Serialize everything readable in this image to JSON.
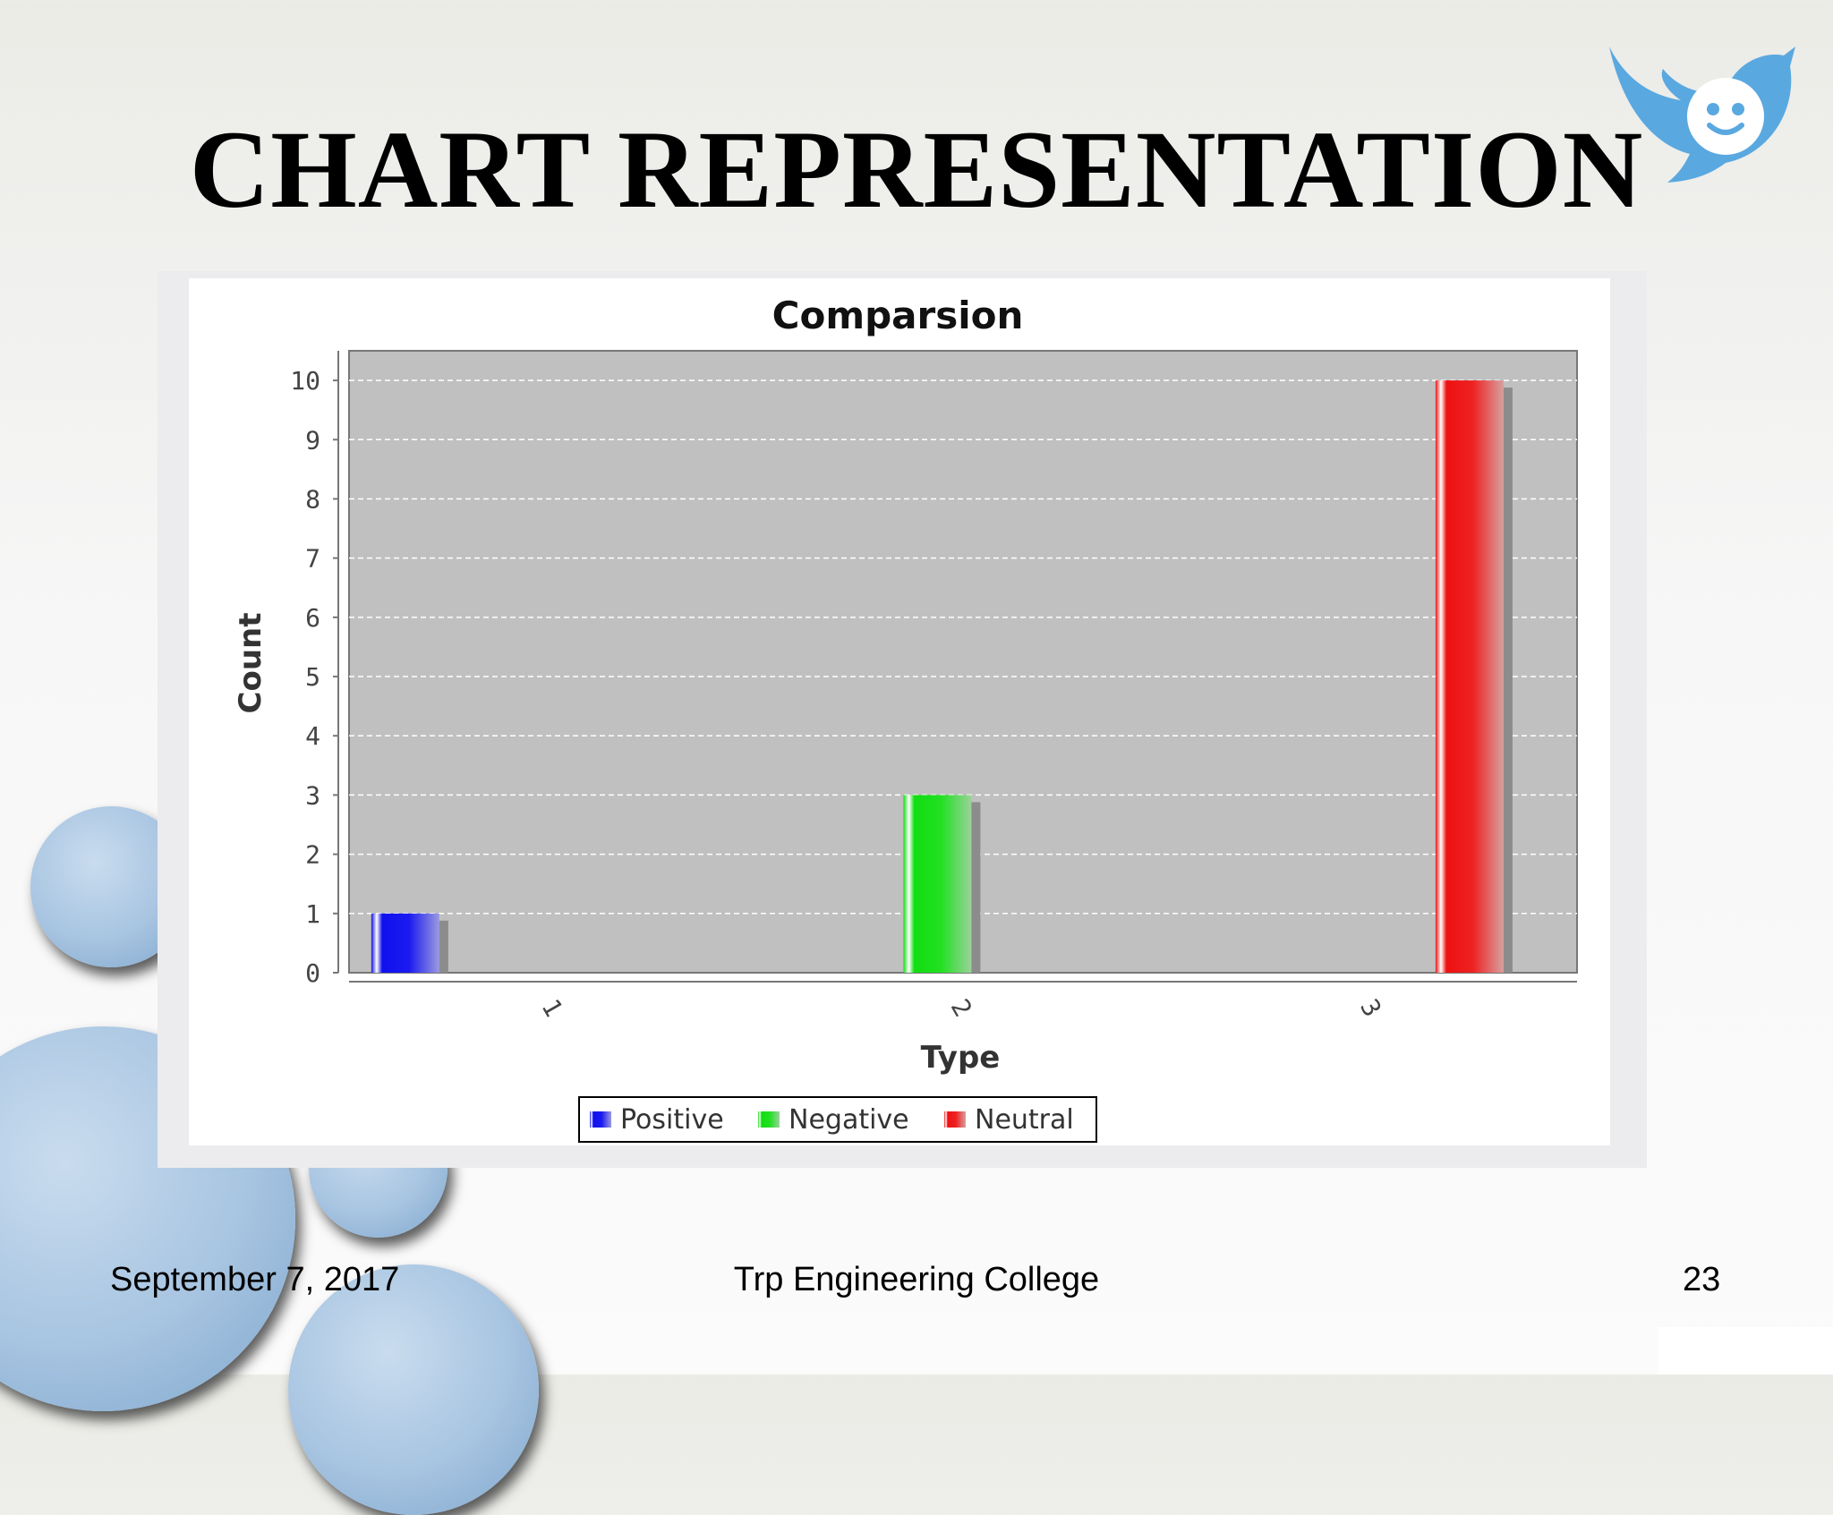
{
  "slide": {
    "title": "CHART REPRESENTATION",
    "footer_date": "September 7, 2017",
    "footer_org": "Trp Engineering College",
    "page_number": "23"
  },
  "colors": {
    "positive": "#1010ee",
    "negative": "#11dd11",
    "neutral": "#ee1111",
    "plot_background": "#c0c0c0",
    "bubble": "#a7c4e1",
    "logo": "#5aa8e0"
  },
  "icons": {
    "logo": "twitter-bird-smiley-icon"
  },
  "chart_data": {
    "type": "bar",
    "title": "Comparsion",
    "xlabel": "Type",
    "ylabel": "Count",
    "categories": [
      "1",
      "2",
      "3"
    ],
    "series": [
      {
        "name": "Positive",
        "values": [
          1,
          0,
          0
        ]
      },
      {
        "name": "Negative",
        "values": [
          0,
          3,
          0
        ]
      },
      {
        "name": "Neutral",
        "values": [
          0,
          0,
          10
        ]
      }
    ],
    "ylim": [
      0,
      10.5
    ],
    "yticks": [
      0,
      1,
      2,
      3,
      4,
      5,
      6,
      7,
      8,
      9,
      10
    ],
    "grid": true,
    "legend_position": "bottom"
  }
}
